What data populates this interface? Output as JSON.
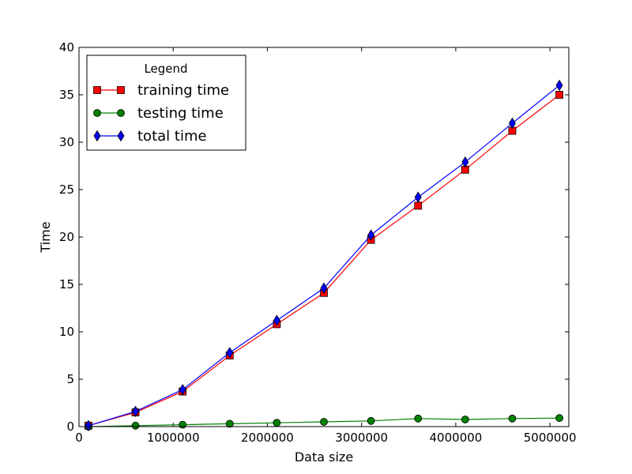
{
  "chart_data": {
    "type": "line",
    "title": "",
    "xlabel": "Data size",
    "ylabel": "Time",
    "xlim": [
      0,
      5200000
    ],
    "ylim": [
      0,
      40
    ],
    "x_ticks": [
      0,
      1000000,
      2000000,
      3000000,
      4000000,
      5000000
    ],
    "x_tick_labels": [
      "0",
      "1000000",
      "2000000",
      "3000000",
      "4000000",
      "5000000"
    ],
    "y_ticks": [
      0,
      5,
      10,
      15,
      20,
      25,
      30,
      35,
      40
    ],
    "y_tick_labels": [
      "0",
      "5",
      "10",
      "15",
      "20",
      "25",
      "30",
      "35",
      "40"
    ],
    "grid": false,
    "legend": {
      "title": "Legend",
      "placement": "top-left"
    },
    "x": [
      100000,
      600000,
      1100000,
      1600000,
      2100000,
      2600000,
      3100000,
      3600000,
      4100000,
      4600000,
      5100000
    ],
    "series": [
      {
        "name": "training time",
        "color": "#ff0000",
        "marker": "square",
        "values": [
          0.1,
          1.5,
          3.7,
          7.5,
          10.8,
          14.1,
          19.7,
          23.3,
          27.1,
          31.2,
          35.0
        ]
      },
      {
        "name": "testing time",
        "color": "#008000",
        "marker": "circle",
        "values": [
          0.0,
          0.1,
          0.2,
          0.3,
          0.4,
          0.5,
          0.6,
          0.85,
          0.75,
          0.85,
          0.9
        ]
      },
      {
        "name": "total time",
        "color": "#0000ff",
        "marker": "diamond",
        "values": [
          0.1,
          1.6,
          3.9,
          7.8,
          11.2,
          14.6,
          20.2,
          24.2,
          27.9,
          32.0,
          36.0
        ]
      }
    ]
  }
}
